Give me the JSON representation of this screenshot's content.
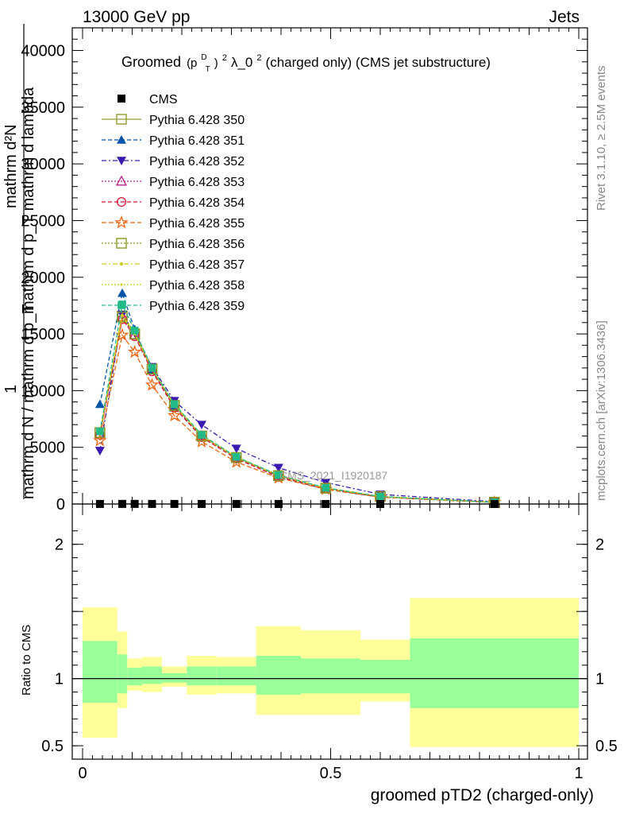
{
  "header": {
    "left": "13000 GeV pp",
    "right": "Jets"
  },
  "side_labels": {
    "rivet": "Rivet 3.1.10, ≥ 2.5M events",
    "mcplots": "mcplots.cern.ch [arXiv:1306.3436]"
  },
  "watermark": "CMS_2021_I1920187",
  "title": {
    "prefix": "Groomed",
    "p": "(p",
    "sup_d": "D",
    "sub_t": "T",
    "close": ")",
    "sup_2": "2",
    "lambda": " λ_0",
    "sup_2b": "2",
    "suffix": "  (charged only) (CMS jet substructure)"
  },
  "ylabel_main": {
    "numerator": "mathrm d²N",
    "denominator": "mathrm d p_T mathrm d lambda",
    "one": "1",
    "norm": "mathrm d N / mathrm d p_T"
  },
  "ylabel_ratio": "Ratio to CMS",
  "xlabel": "groomed pTD2 (charged-only)",
  "colors": {
    "band_inner": "#99ff99",
    "band_outer": "#ffff99",
    "s350": "#999933",
    "s351": "#0055aa",
    "s352": "#3a1ab0",
    "s353": "#bb2288",
    "s354": "#dd1133",
    "s355": "#ee6611",
    "s356": "#889922",
    "s357": "#cccc22",
    "s358": "#cccc00",
    "s359": "#22bb88"
  },
  "chart_data": {
    "type": "line",
    "xlim": [
      0,
      1
    ],
    "ylim_main": [
      0,
      42000
    ],
    "ylim_ratio": [
      0.4,
      2.3
    ],
    "x_ticks": [
      "0",
      "0.5",
      "1"
    ],
    "y_ticks_main": [
      "0",
      "5000",
      "10000",
      "15000",
      "20000",
      "25000",
      "30000",
      "35000",
      "40000"
    ],
    "y_ticks_ratio": [
      "0.5",
      "1",
      "2"
    ],
    "x": [
      0.035,
      0.08,
      0.105,
      0.14,
      0.185,
      0.24,
      0.31,
      0.395,
      0.49,
      0.6,
      0.83
    ],
    "cms": {
      "name": "CMS",
      "values": [
        6.2,
        9.8,
        9.5,
        8.3,
        6.1,
        4.4,
        3.0,
        2.0,
        1.3,
        0.7,
        0.25
      ]
    },
    "series": [
      {
        "name": "Pythia 6.428 350",
        "marker": "square-open",
        "dash": "",
        "color": "#999933",
        "values": [
          6300,
          16600,
          15000,
          11900,
          8700,
          6000,
          4100,
          2500,
          1400,
          650,
          150
        ]
      },
      {
        "name": "Pythia 6.428 351",
        "marker": "triangle-up",
        "dash": "5,3",
        "color": "#0055aa",
        "values": [
          8800,
          18600,
          15400,
          11800,
          8500,
          5900,
          4000,
          2400,
          1300,
          600,
          130
        ]
      },
      {
        "name": "Pythia 6.428 352",
        "marker": "triangle-down",
        "dash": "6,3,2,3",
        "color": "#3a1ab0",
        "values": [
          4700,
          16700,
          15100,
          12100,
          9100,
          7000,
          4900,
          3200,
          1900,
          850,
          200
        ]
      },
      {
        "name": "Pythia 6.428 353",
        "marker": "triangle-open",
        "dash": "2,2",
        "color": "#bb2288",
        "values": [
          6200,
          16400,
          14900,
          11800,
          8600,
          6000,
          4100,
          2500,
          1400,
          650,
          150
        ]
      },
      {
        "name": "Pythia 6.428 354",
        "marker": "circle-open",
        "dash": "5,3",
        "color": "#dd1133",
        "values": [
          6100,
          16300,
          14800,
          11700,
          8500,
          5900,
          4000,
          2400,
          1350,
          620,
          140
        ]
      },
      {
        "name": "Pythia 6.428 355",
        "marker": "star-open",
        "dash": "6,3",
        "color": "#ee6611",
        "values": [
          5600,
          14900,
          13400,
          10500,
          7800,
          5500,
          3700,
          2300,
          1300,
          600,
          140
        ]
      },
      {
        "name": "Pythia 6.428 356",
        "marker": "square-open",
        "dash": "2,2",
        "color": "#889922",
        "values": [
          6300,
          16500,
          15000,
          11900,
          8700,
          6000,
          4100,
          2500,
          1400,
          660,
          150
        ]
      },
      {
        "name": "Pythia 6.428 357",
        "marker": "dot",
        "dash": "6,3,2,3",
        "color": "#cccc22",
        "values": [
          6250,
          16600,
          15000,
          11900,
          8700,
          6000,
          4100,
          2500,
          1400,
          650,
          150
        ]
      },
      {
        "name": "Pythia 6.428 358",
        "marker": "dot-small",
        "dash": "2,2",
        "color": "#cccc00",
        "values": [
          6300,
          16700,
          15100,
          12000,
          8800,
          6050,
          4150,
          2550,
          1420,
          660,
          150
        ]
      },
      {
        "name": "Pythia 6.428 359",
        "marker": "square-filled",
        "dash": "5,3",
        "color": "#22bb88",
        "values": [
          6400,
          17600,
          15300,
          12000,
          8800,
          6100,
          4150,
          2550,
          1420,
          660,
          150
        ]
      }
    ],
    "ratio_bands": [
      {
        "x0": 0.0,
        "x1": 0.07,
        "inner": [
          0.82,
          1.28
        ],
        "outer": [
          0.56,
          1.53
        ]
      },
      {
        "x0": 0.07,
        "x1": 0.09,
        "inner": [
          0.89,
          1.18
        ],
        "outer": [
          0.78,
          1.35
        ]
      },
      {
        "x0": 0.09,
        "x1": 0.12,
        "inner": [
          0.95,
          1.08
        ],
        "outer": [
          0.91,
          1.15
        ]
      },
      {
        "x0": 0.12,
        "x1": 0.16,
        "inner": [
          0.96,
          1.09
        ],
        "outer": [
          0.9,
          1.16
        ]
      },
      {
        "x0": 0.16,
        "x1": 0.21,
        "inner": [
          0.97,
          1.04
        ],
        "outer": [
          0.94,
          1.09
        ]
      },
      {
        "x0": 0.21,
        "x1": 0.27,
        "inner": [
          0.95,
          1.09
        ],
        "outer": [
          0.88,
          1.17
        ]
      },
      {
        "x0": 0.27,
        "x1": 0.35,
        "inner": [
          0.95,
          1.09
        ],
        "outer": [
          0.89,
          1.16
        ]
      },
      {
        "x0": 0.35,
        "x1": 0.44,
        "inner": [
          0.88,
          1.17
        ],
        "outer": [
          0.73,
          1.39
        ]
      },
      {
        "x0": 0.44,
        "x1": 0.56,
        "inner": [
          0.89,
          1.15
        ],
        "outer": [
          0.73,
          1.36
        ]
      },
      {
        "x0": 0.56,
        "x1": 0.66,
        "inner": [
          0.89,
          1.14
        ],
        "outer": [
          0.83,
          1.29
        ]
      },
      {
        "x0": 0.66,
        "x1": 1.0,
        "inner": [
          0.78,
          1.3
        ],
        "outer": [
          0.49,
          1.6
        ]
      }
    ]
  }
}
